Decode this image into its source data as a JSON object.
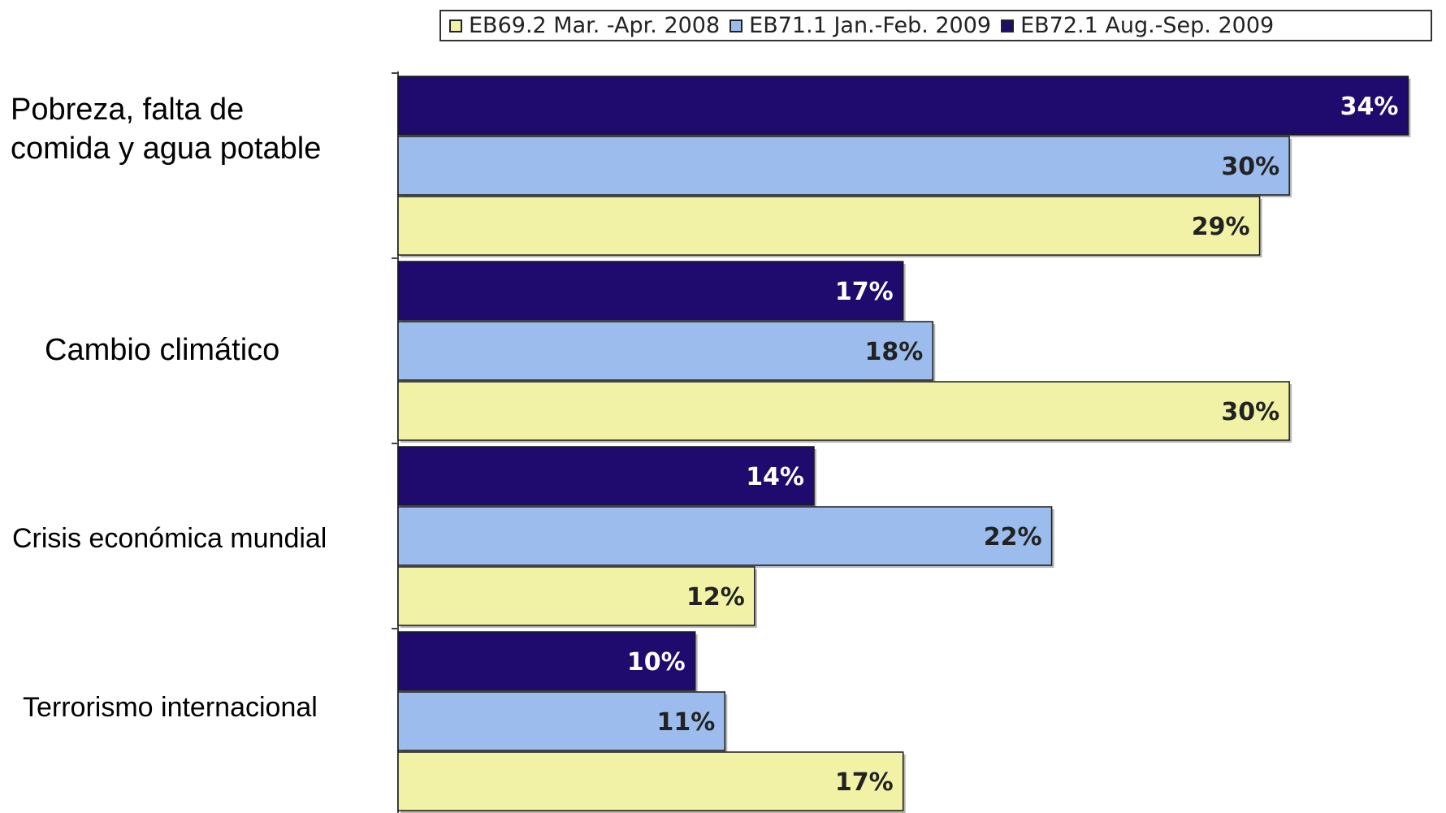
{
  "chart_data": {
    "type": "bar",
    "orientation": "horizontal",
    "categories": [
      "Pobreza, falta de comida y agua potable",
      "Cambio climático",
      "Crisis económica mundial",
      "Terrorismo internacional"
    ],
    "category_lines": [
      [
        "Pobreza, falta de",
        "comida y agua potable"
      ],
      [
        "Cambio climático"
      ],
      [
        "Crisis económica mundial"
      ],
      [
        "Terrorismo internacional"
      ]
    ],
    "series": [
      {
        "name": "EB72.1 Aug.-Sep. 2009",
        "color": "#1f0a6e",
        "label_color": "#ffffff",
        "values": [
          34,
          17,
          14,
          10
        ],
        "labels": [
          "34%",
          "17%",
          "14%",
          "10%"
        ]
      },
      {
        "name": "EB71.1 Jan.-Feb. 2009",
        "color": "#9bbcec",
        "label_color": "#222222",
        "values": [
          30,
          18,
          22,
          11
        ],
        "labels": [
          "30%",
          "18%",
          "22%",
          "11%"
        ]
      },
      {
        "name": "EB69.2 Mar. -Apr. 2008",
        "color": "#f1f2a6",
        "label_color": "#222222",
        "values": [
          29,
          30,
          12,
          17
        ],
        "labels": [
          "29%",
          "30%",
          "12%",
          "17%"
        ]
      }
    ],
    "legend_order": [
      2,
      1,
      0
    ],
    "xlim": [
      0,
      35
    ],
    "legend_position": "top-right",
    "grid": false,
    "title": "",
    "xlabel": "",
    "ylabel": ""
  }
}
